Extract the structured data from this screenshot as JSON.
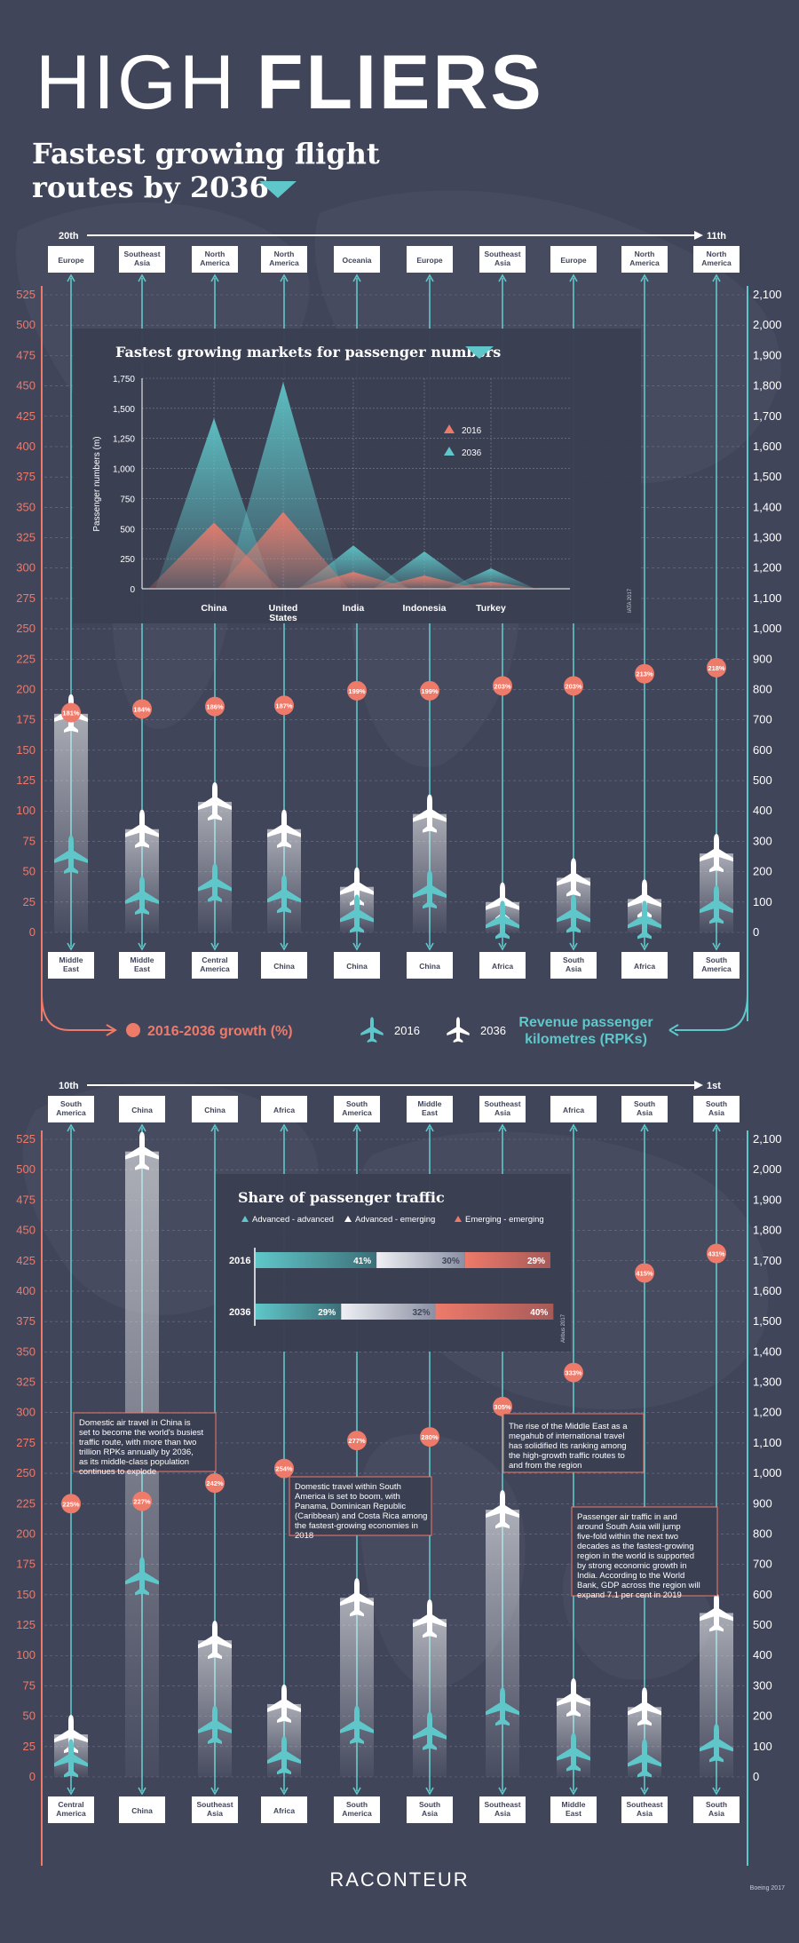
{
  "title": {
    "light": "HIGH",
    "bold": "FLIERS"
  },
  "subtitle": {
    "line1": "Fastest growing flight",
    "line2": "routes by 2036"
  },
  "colors": {
    "bg": "#41455a",
    "coral": "#ee7a6a",
    "teal": "#5fc7c9",
    "white": "#ffffff",
    "inset": "#3b3f52"
  },
  "legend": {
    "growth": "2016-2036 growth (%)",
    "y2016": "2016",
    "y2036": "2036",
    "rpk_line1": "Revenue passenger",
    "rpk_line2": "kilometres (RPKs)"
  },
  "left_axis_ticks": [
    "525",
    "500",
    "475",
    "450",
    "425",
    "400",
    "375",
    "350",
    "325",
    "300",
    "275",
    "250",
    "225",
    "200",
    "175",
    "150",
    "125",
    "100",
    "75",
    "50",
    "25",
    "0"
  ],
  "right_axis_ticks": [
    "2,100",
    "2,000",
    "1,900",
    "1,800",
    "1,700",
    "1,600",
    "1,500",
    "1,400",
    "1,300",
    "1,200",
    "1,100",
    "1,000",
    "900",
    "800",
    "700",
    "600",
    "500",
    "400",
    "300",
    "200",
    "100",
    "0"
  ],
  "panel1": {
    "rank_start": "20th",
    "rank_end": "11th",
    "routes": [
      {
        "from": "Europe",
        "to": "Middle East",
        "growth": "181%",
        "g": 181,
        "rpk2016": 255,
        "rpk2036": 720
      },
      {
        "from": "Southeast Asia",
        "to": "Middle East",
        "growth": "184%",
        "g": 184,
        "rpk2016": 120,
        "rpk2036": 340
      },
      {
        "from": "North America",
        "to": "Central America",
        "growth": "186%",
        "g": 186,
        "rpk2016": 162,
        "rpk2036": 430
      },
      {
        "from": "North America",
        "to": "China",
        "growth": "187%",
        "g": 187,
        "rpk2016": 125,
        "rpk2036": 340
      },
      {
        "from": "Oceania",
        "to": "China",
        "growth": "199%",
        "g": 199,
        "rpk2016": 60,
        "rpk2036": 150
      },
      {
        "from": "Europe",
        "to": "China",
        "growth": "199%",
        "g": 199,
        "rpk2016": 140,
        "rpk2036": 390
      },
      {
        "from": "Southeast Asia",
        "to": "Africa",
        "growth": "203%",
        "g": 203,
        "rpk2016": 40,
        "rpk2036": 100
      },
      {
        "from": "Europe",
        "to": "South Asia",
        "growth": "203%",
        "g": 203,
        "rpk2016": 60,
        "rpk2036": 180
      },
      {
        "from": "North America",
        "to": "Africa",
        "growth": "213%",
        "g": 213,
        "rpk2016": 40,
        "rpk2036": 110
      },
      {
        "from": "North America",
        "to": "South America",
        "growth": "218%",
        "g": 218,
        "rpk2016": 90,
        "rpk2036": 260
      }
    ]
  },
  "panel2": {
    "rank_start": "10th",
    "rank_end": "1st",
    "routes": [
      {
        "from": "South America",
        "to": "Central America",
        "growth": "225%",
        "g": 225,
        "rpk2016": 60,
        "rpk2036": 140
      },
      {
        "from": "China",
        "to": "China",
        "growth": "227%",
        "g": 227,
        "rpk2016": 660,
        "rpk2036": 2060
      },
      {
        "from": "China",
        "to": "Southeast Asia",
        "growth": "242%",
        "g": 242,
        "rpk2016": 170,
        "rpk2036": 450
      },
      {
        "from": "Africa",
        "to": "Africa",
        "growth": "254%",
        "g": 254,
        "rpk2016": 70,
        "rpk2036": 240
      },
      {
        "from": "South America",
        "to": "South America",
        "growth": "277%",
        "g": 277,
        "rpk2016": 170,
        "rpk2036": 590
      },
      {
        "from": "Middle East",
        "to": "South Asia",
        "growth": "280%",
        "g": 280,
        "rpk2016": 150,
        "rpk2036": 520
      },
      {
        "from": "Southeast Asia",
        "to": "Southeast Asia",
        "growth": "305%",
        "g": 305,
        "rpk2016": 230,
        "rpk2036": 880
      },
      {
        "from": "Africa",
        "to": "Middle East",
        "growth": "333%",
        "g": 333,
        "rpk2016": 80,
        "rpk2036": 260
      },
      {
        "from": "South Asia",
        "to": "Southeast Asia",
        "growth": "415%",
        "g": 415,
        "rpk2016": 60,
        "rpk2036": 230
      },
      {
        "from": "South Asia",
        "to": "South Asia",
        "growth": "431%",
        "g": 431,
        "rpk2016": 110,
        "rpk2036": 540
      }
    ],
    "notes": [
      "Domestic air travel in China is set to become the world's busiest traffic route, with more than two trillion RPKs annually by 2036, as its middle-class population continues to explode",
      "Domestic travel within South America is set to boom, with Panama, Dominican Republic (Caribbean) and Costa Rica among the fastest-growing economies in 2018",
      "The rise of the Middle East as a megahub of international travel has solidified its ranking among the high-growth traffic routes to and from the region",
      "Passenger air traffic in and around South Asia will jump five-fold within the next two decades as the fastest-growing region in the world is supported by strong economic growth in India. According to the World Bank, GDP across the region will expand 7.1 per cent in 2019"
    ]
  },
  "chart_data": [
    {
      "type": "area",
      "title": "Fastest growing markets for passenger numbers",
      "ylabel": "Passenger numbers (m)",
      "categories": [
        "China",
        "United States",
        "India",
        "Indonesia",
        "Turkey"
      ],
      "ylim": [
        0,
        1750
      ],
      "yticks": [
        "1,750",
        "1,500",
        "1,250",
        "1,000",
        "750",
        "500",
        "250",
        "0"
      ],
      "series": [
        {
          "name": "2016",
          "values": [
            550,
            640,
            140,
            110,
            60
          ]
        },
        {
          "name": "2036",
          "values": [
            1420,
            1720,
            360,
            310,
            170
          ]
        }
      ],
      "source": "IATA 2017"
    },
    {
      "type": "bar",
      "title": "Share of passenger traffic",
      "categories": [
        "2016",
        "2036"
      ],
      "series": [
        {
          "name": "Advanced - advanced",
          "values": [
            41,
            29
          ]
        },
        {
          "name": "Advanced - emerging",
          "values": [
            30,
            32
          ]
        },
        {
          "name": "Emerging - emerging",
          "values": [
            29,
            40
          ]
        }
      ],
      "labels": {
        "2016": [
          "41%",
          "30%",
          "29%"
        ],
        "2036": [
          "29%",
          "32%",
          "40%"
        ]
      },
      "source": "Airbus 2017"
    }
  ],
  "footer": {
    "logo": "RACONTEUR",
    "source": "Boeing 2017"
  }
}
